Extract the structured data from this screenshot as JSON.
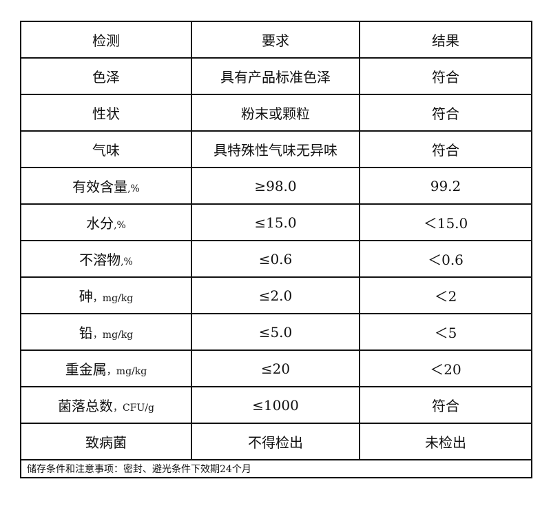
{
  "table": {
    "headers": [
      "检测",
      "要求",
      "结果"
    ],
    "rows": [
      {
        "item": "色泽",
        "unit": "",
        "requirement": "具有产品标准色泽",
        "result": "符合"
      },
      {
        "item": "性状",
        "unit": "",
        "requirement": "粉末或颗粒",
        "result": "符合"
      },
      {
        "item": "气味",
        "unit": "",
        "requirement": "具特殊性气味无异味",
        "result": "符合"
      },
      {
        "item": "有效含量",
        "unit": ",%",
        "requirement": "≥98.0",
        "result": "99.2"
      },
      {
        "item": "水分",
        "unit": ",%",
        "requirement": "≤15.0",
        "result": "＜15.0"
      },
      {
        "item": "不溶物",
        "unit": ",%",
        "requirement": "≤0.6",
        "result": "＜0.6"
      },
      {
        "item": "砷",
        "unit": "，mg/kg",
        "requirement": "≤2.0",
        "result": "＜2"
      },
      {
        "item": "铅",
        "unit": "，mg/kg",
        "requirement": "≤5.0",
        "result": "＜5"
      },
      {
        "item": "重金属",
        "unit": "，mg/kg",
        "requirement": "≤20",
        "result": "＜20"
      },
      {
        "item": "菌落总数",
        "unit": "，CFU/g",
        "requirement": "≤1000",
        "result": "符合"
      },
      {
        "item": "致病菌",
        "unit": "",
        "requirement": "不得检出",
        "result": "未检出"
      }
    ],
    "footer": "储存条件和注意事项：密封、避光条件下效期24个月"
  }
}
